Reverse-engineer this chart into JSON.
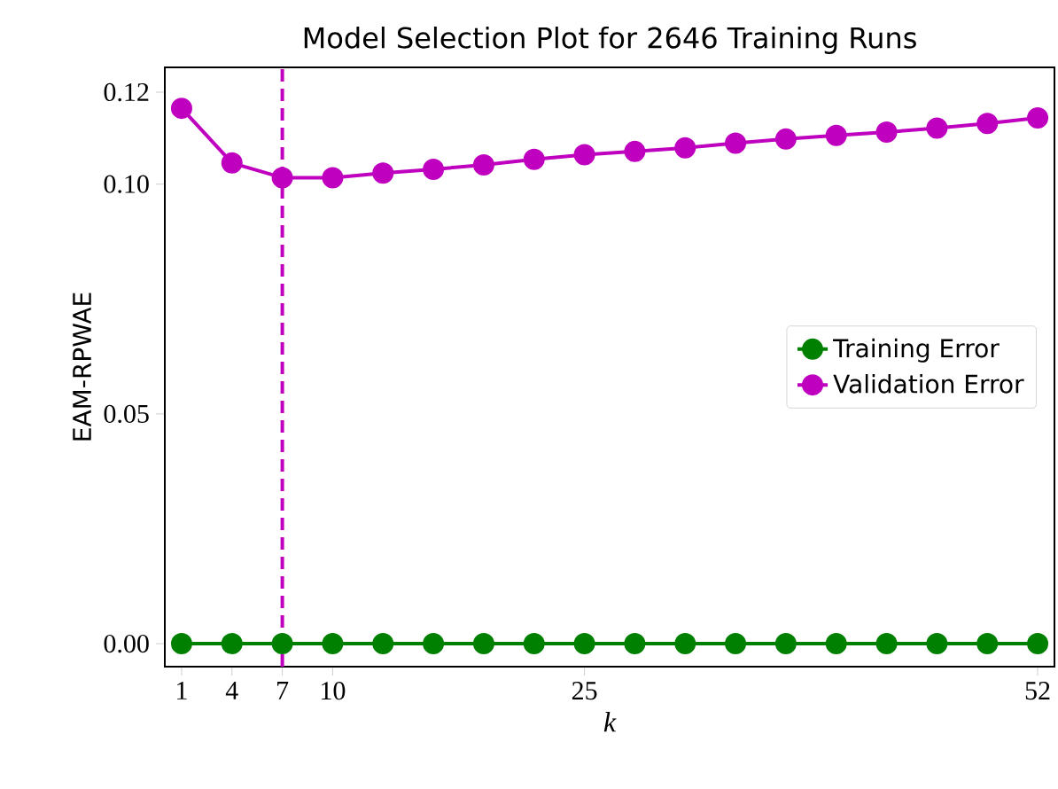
{
  "chart_data": {
    "type": "line",
    "title": "Model Selection Plot for 2646 Training Runs",
    "xlabel": "k",
    "ylabel": "EAM-RPWAE",
    "x": [
      1,
      4,
      7,
      10,
      13,
      16,
      19,
      22,
      25,
      28,
      31,
      34,
      37,
      40,
      43,
      46,
      49,
      52
    ],
    "series": [
      {
        "name": "Training Error",
        "color": "#008000",
        "values": [
          0,
          0,
          0,
          0,
          0,
          0,
          0,
          0,
          0,
          0,
          0,
          0,
          0,
          0,
          0,
          0,
          0,
          0
        ]
      },
      {
        "name": "Validation Error",
        "color": "#bf00bf",
        "values": [
          0.1165,
          0.1046,
          0.1014,
          0.1014,
          0.1024,
          0.1032,
          0.1042,
          0.1054,
          0.1064,
          0.1071,
          0.1079,
          0.1089,
          0.1098,
          0.1106,
          0.1113,
          0.1122,
          0.1132,
          0.1144
        ]
      }
    ],
    "xlim": [
      0,
      53
    ],
    "ylim": [
      -0.005,
      0.1254
    ],
    "xticks": [
      1,
      4,
      7,
      10,
      25,
      52
    ],
    "yticks": [
      {
        "value": 0,
        "label": "0.00"
      },
      {
        "value": 0.05,
        "label": "0.05"
      },
      {
        "value": 0.1,
        "label": "0.10"
      },
      {
        "value": 0.12,
        "label": "0.12"
      }
    ],
    "ref_lines": [
      {
        "axis": "x",
        "value": 7,
        "color": "#bf00bf",
        "line_style": "dashed"
      }
    ],
    "legend": "right",
    "marker": "circle",
    "line_style": "solid",
    "grid": false
  }
}
